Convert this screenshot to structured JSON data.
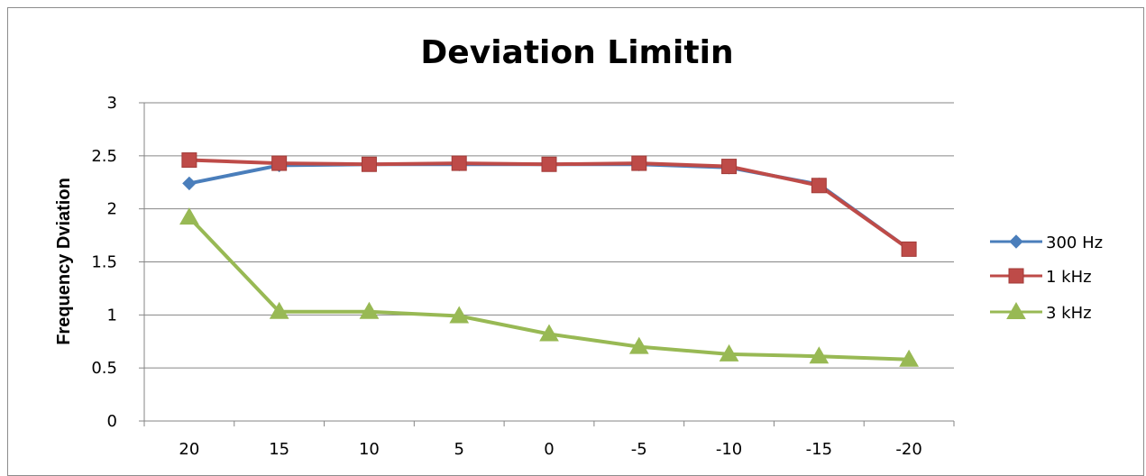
{
  "chart_data": {
    "type": "line",
    "title": "Deviation Limitin",
    "xlabel": "",
    "ylabel": "Frequency Dviation",
    "x": [
      "20",
      "15",
      "10",
      "5",
      "0",
      "-5",
      "-10",
      "-15",
      "-20"
    ],
    "yticks": [
      "0",
      "0.5",
      "1",
      "1.5",
      "2",
      "2.5",
      "3"
    ],
    "ylim": [
      0,
      3
    ],
    "grid": true,
    "legend": "right",
    "series": [
      {
        "name": "300 Hz",
        "color": "#4a7ebb",
        "marker": "diamond",
        "values": [
          2.24,
          2.41,
          2.42,
          2.42,
          2.42,
          2.42,
          2.39,
          2.23,
          1.62
        ]
      },
      {
        "name": "1 kHz",
        "color": "#be4b48",
        "marker": "square",
        "values": [
          2.46,
          2.43,
          2.42,
          2.43,
          2.42,
          2.43,
          2.4,
          2.22,
          1.62
        ]
      },
      {
        "name": "3 kHz",
        "color": "#98b954",
        "marker": "triangle",
        "values": [
          1.92,
          1.03,
          1.03,
          0.99,
          0.82,
          0.7,
          0.63,
          0.61,
          0.58
        ]
      }
    ]
  }
}
